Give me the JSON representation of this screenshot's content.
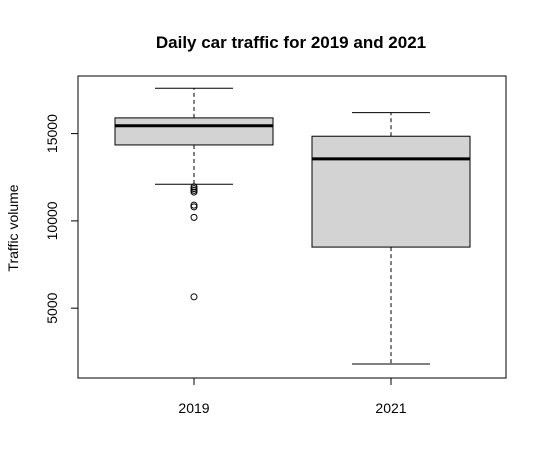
{
  "chart_data": {
    "type": "boxplot",
    "title": "Daily car traffic for 2019 and 2021",
    "ylabel": "Traffic volume",
    "xlabel": "",
    "categories": [
      "2019",
      "2021"
    ],
    "ylim": [
      1000,
      18300
    ],
    "yticks": [
      "5000",
      "10000",
      "15000"
    ],
    "boxes": [
      {
        "category": "2019",
        "whisker_low": 12100,
        "q1": 14350,
        "median": 15450,
        "q3": 15900,
        "whisker_high": 17600,
        "outliers": [
          11950,
          11850,
          11750,
          11650,
          10900,
          10800,
          10200,
          5650
        ]
      },
      {
        "category": "2021",
        "whisker_low": 1800,
        "q1": 8500,
        "median": 13550,
        "q3": 14850,
        "whisker_high": 16200,
        "outliers": []
      }
    ],
    "grid": false,
    "box_fill": "#d3d3d3",
    "line_color": "#000000"
  }
}
